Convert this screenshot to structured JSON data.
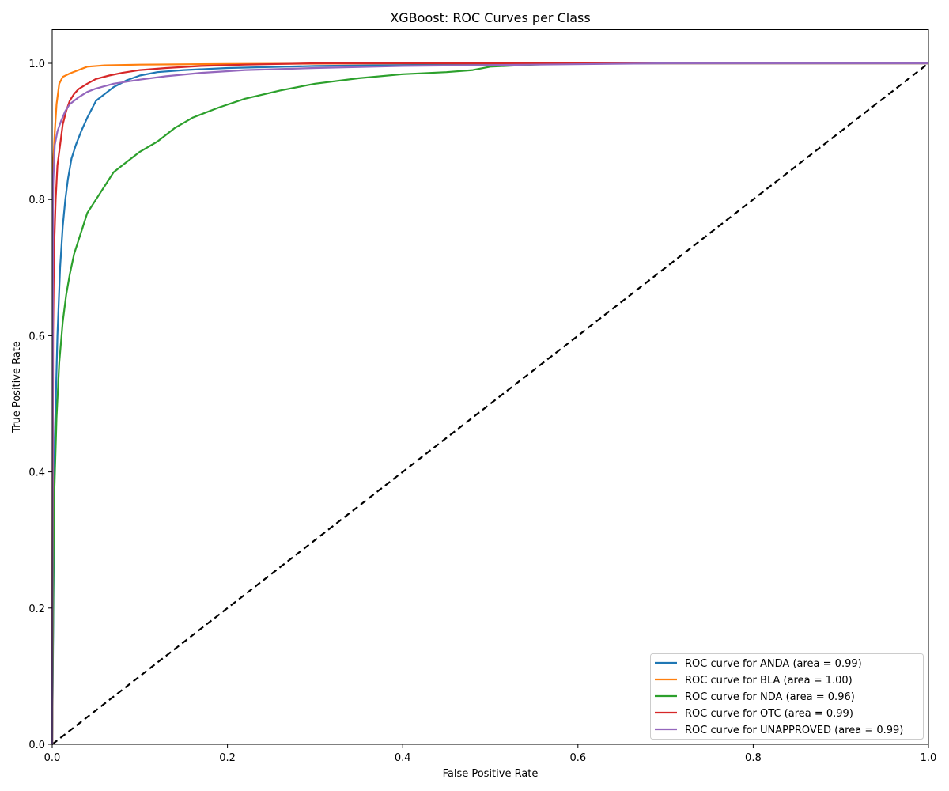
{
  "chart_data": {
    "type": "line",
    "title": "XGBoost: ROC Curves per Class",
    "xlabel": "False Positive Rate",
    "ylabel": "True Positive Rate",
    "xlim": [
      0.0,
      1.0
    ],
    "ylim": [
      0.0,
      1.05
    ],
    "xticks": [
      "0.0",
      "0.2",
      "0.4",
      "0.6",
      "0.8",
      "1.0"
    ],
    "yticks": [
      "0.0",
      "0.2",
      "0.4",
      "0.6",
      "0.8",
      "1.0"
    ],
    "grid": false,
    "legend_position": "lower right",
    "series": [
      {
        "name": "ROC curve for ANDA (area = 0.99)",
        "class": "ANDA",
        "auc": 0.99,
        "color": "#1f77b4",
        "x": [
          0.0,
          0.003,
          0.006,
          0.009,
          0.012,
          0.015,
          0.018,
          0.022,
          0.027,
          0.033,
          0.04,
          0.05,
          0.06,
          0.07,
          0.085,
          0.1,
          0.12,
          0.15,
          0.2,
          0.3,
          0.45,
          0.6,
          0.8,
          1.0
        ],
        "y": [
          0.0,
          0.45,
          0.6,
          0.7,
          0.76,
          0.8,
          0.83,
          0.86,
          0.88,
          0.9,
          0.92,
          0.945,
          0.955,
          0.965,
          0.975,
          0.982,
          0.987,
          0.99,
          0.993,
          0.996,
          0.998,
          1.0,
          1.0,
          1.0
        ]
      },
      {
        "name": "ROC curve for BLA (area = 1.00)",
        "class": "BLA",
        "auc": 1.0,
        "color": "#ff7f0e",
        "x": [
          0.0,
          0.001,
          0.003,
          0.005,
          0.008,
          0.012,
          0.02,
          0.03,
          0.04,
          0.06,
          0.1,
          0.2,
          0.4,
          0.7,
          1.0
        ],
        "y": [
          0.0,
          0.85,
          0.9,
          0.94,
          0.97,
          0.98,
          0.985,
          0.99,
          0.995,
          0.997,
          0.998,
          0.999,
          1.0,
          1.0,
          1.0
        ]
      },
      {
        "name": "ROC curve for NDA (area = 0.96)",
        "class": "NDA",
        "auc": 0.96,
        "color": "#2ca02c",
        "x": [
          0.0,
          0.002,
          0.005,
          0.008,
          0.012,
          0.016,
          0.02,
          0.025,
          0.03,
          0.035,
          0.04,
          0.05,
          0.06,
          0.07,
          0.08,
          0.1,
          0.12,
          0.14,
          0.16,
          0.19,
          0.22,
          0.26,
          0.3,
          0.35,
          0.4,
          0.45,
          0.48,
          0.5,
          0.55,
          0.6,
          0.8,
          1.0
        ],
        "y": [
          0.0,
          0.35,
          0.48,
          0.56,
          0.62,
          0.66,
          0.69,
          0.72,
          0.74,
          0.76,
          0.78,
          0.8,
          0.82,
          0.84,
          0.85,
          0.87,
          0.885,
          0.905,
          0.92,
          0.935,
          0.948,
          0.96,
          0.97,
          0.978,
          0.984,
          0.987,
          0.99,
          0.995,
          0.998,
          1.0,
          1.0,
          1.0
        ]
      },
      {
        "name": "ROC curve for OTC (area = 0.99)",
        "class": "OTC",
        "auc": 0.99,
        "color": "#d62728",
        "x": [
          0.0,
          0.001,
          0.002,
          0.004,
          0.006,
          0.009,
          0.012,
          0.016,
          0.02,
          0.025,
          0.03,
          0.04,
          0.05,
          0.065,
          0.08,
          0.1,
          0.13,
          0.17,
          0.22,
          0.3,
          0.5,
          1.0
        ],
        "y": [
          0.0,
          0.6,
          0.72,
          0.8,
          0.85,
          0.88,
          0.91,
          0.93,
          0.945,
          0.955,
          0.962,
          0.97,
          0.977,
          0.982,
          0.986,
          0.99,
          0.993,
          0.996,
          0.998,
          1.0,
          1.0,
          1.0
        ]
      },
      {
        "name": "ROC curve for UNAPPROVED (area = 0.99)",
        "class": "UNAPPROVED",
        "auc": 0.99,
        "color": "#9467bd",
        "x": [
          0.0,
          0.001,
          0.003,
          0.006,
          0.01,
          0.015,
          0.02,
          0.03,
          0.04,
          0.05,
          0.07,
          0.1,
          0.13,
          0.17,
          0.22,
          0.3,
          0.4,
          0.55,
          0.7,
          1.0
        ],
        "y": [
          0.0,
          0.82,
          0.88,
          0.9,
          0.915,
          0.93,
          0.94,
          0.95,
          0.958,
          0.963,
          0.97,
          0.976,
          0.981,
          0.986,
          0.99,
          0.993,
          0.996,
          0.998,
          1.0,
          1.0
        ]
      }
    ],
    "reference_line": {
      "x": [
        0,
        1
      ],
      "y": [
        0,
        1
      ],
      "style": "dashed",
      "color": "#000000"
    }
  }
}
